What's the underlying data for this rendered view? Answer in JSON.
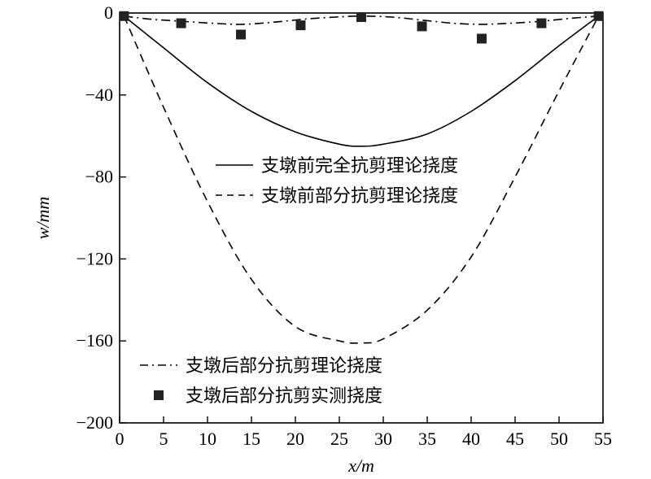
{
  "chart_data": {
    "type": "line",
    "xlabel": "x/m",
    "ylabel": "w/mm",
    "xlim": [
      0,
      55
    ],
    "ylim": [
      -200,
      0
    ],
    "xticks": [
      0,
      5,
      10,
      15,
      20,
      25,
      30,
      35,
      40,
      45,
      50,
      55
    ],
    "yticks": [
      0,
      -40,
      -80,
      -120,
      -160,
      -200
    ],
    "xtick_labels": [
      "0",
      "5",
      "10",
      "15",
      "20",
      "25",
      "30",
      "35",
      "40",
      "45",
      "50",
      "55"
    ],
    "ytick_labels": [
      "0",
      "−40",
      "−80",
      "−120",
      "−160",
      "−200"
    ],
    "grid": false,
    "series": [
      {
        "name": "支墩前完全抗剪理论挠度",
        "style": "solid",
        "x": [
          0.5,
          5,
          10,
          15,
          20,
          25,
          27.5,
          30,
          35,
          40,
          45,
          50,
          54.5
        ],
        "y": [
          -1.5,
          -17,
          -34,
          -48,
          -58,
          -64,
          -65,
          -64,
          -59,
          -48,
          -33,
          -16,
          -1.5
        ]
      },
      {
        "name": "支墩前部分抗剪理论挠度",
        "style": "dashed",
        "x": [
          0.5,
          5,
          10,
          15,
          20,
          25,
          27.5,
          30,
          35,
          40,
          45,
          50,
          54.5
        ],
        "y": [
          -1.5,
          -46,
          -92,
          -130,
          -153,
          -160,
          -161,
          -159,
          -145,
          -119,
          -80,
          -38,
          -1.5
        ]
      },
      {
        "name": "支墩后部分抗剪理论挠度",
        "style": "dashdot",
        "x": [
          0.5,
          3.5,
          7,
          10.5,
          14,
          17.5,
          21,
          24.5,
          27.5,
          31,
          34.5,
          38,
          41,
          44.5,
          48,
          51.5,
          54.5
        ],
        "y": [
          -1.5,
          -3,
          -4,
          -5,
          -5.5,
          -4.5,
          -3,
          -2,
          -1.5,
          -2,
          -3.5,
          -5,
          -5.5,
          -5,
          -4,
          -2.5,
          -1.5
        ]
      },
      {
        "name": "支墩后部分抗剪实测挠度",
        "style": "marker",
        "x": [
          0.5,
          7,
          13.8,
          20.6,
          27.5,
          34.4,
          41.2,
          48,
          54.5
        ],
        "y": [
          -1.5,
          -5,
          -10.5,
          -6,
          -2,
          -6.5,
          -12.5,
          -5,
          -1.5
        ]
      }
    ]
  }
}
